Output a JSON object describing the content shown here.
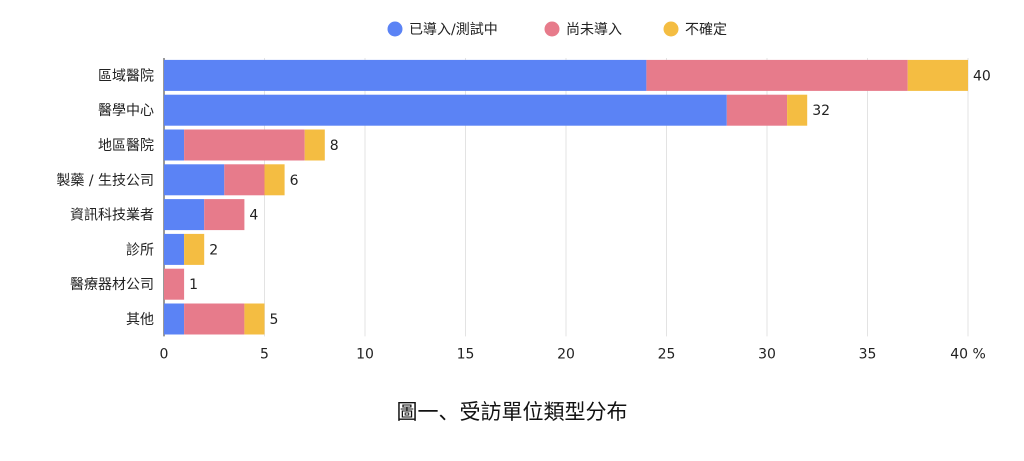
{
  "chart_data": {
    "type": "bar",
    "orientation": "horizontal",
    "stacked": true,
    "categories": [
      "區域醫院",
      "醫學中心",
      "地區醫院",
      "製藥 / 生技公司",
      "資訊科技業者",
      "診所",
      "醫療器材公司",
      "其他"
    ],
    "series": [
      {
        "name": "已導入/測試中",
        "color": "#5b83f5",
        "values": [
          24,
          28,
          1,
          3,
          2,
          1,
          0,
          1
        ]
      },
      {
        "name": "尚未導入",
        "color": "#e77b8b",
        "values": [
          13,
          3,
          6,
          2,
          2,
          0,
          1,
          3
        ]
      },
      {
        "name": "不確定",
        "color": "#f4bd42",
        "values": [
          3,
          1,
          1,
          1,
          0,
          1,
          0,
          1
        ]
      }
    ],
    "totals": [
      40,
      32,
      8,
      6,
      4,
      2,
      1,
      5
    ],
    "xticks": [
      "0",
      "5",
      "10",
      "15",
      "20",
      "25",
      "30",
      "35",
      "40 %"
    ],
    "xlim": [
      0,
      40
    ],
    "grid": true,
    "legend_position": "top-center"
  },
  "caption": "圖一、受訪單位類型分布"
}
